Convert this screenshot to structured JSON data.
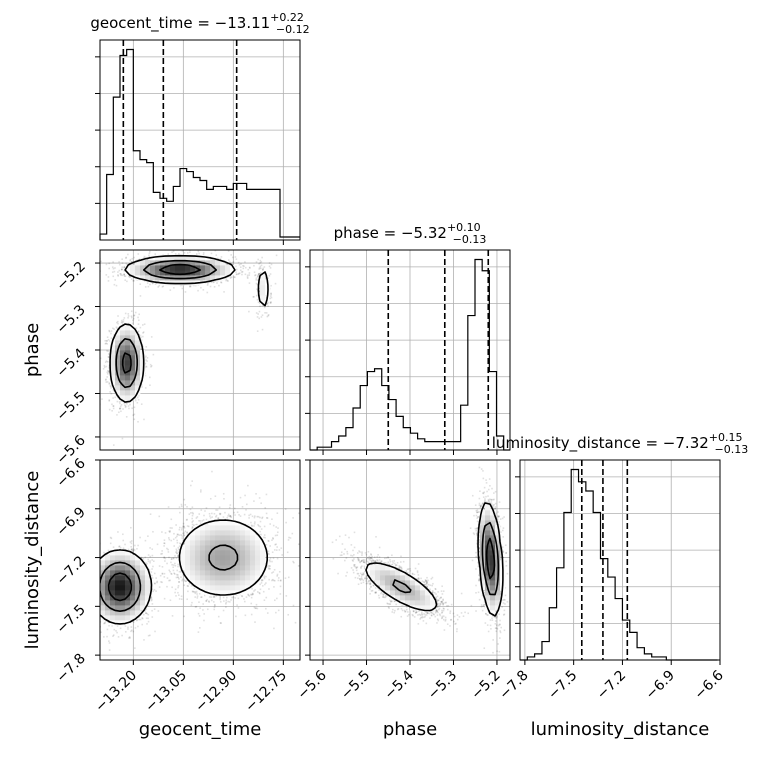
{
  "chart_data": {
    "type": "corner",
    "parameters": [
      {
        "name": "geocent_time",
        "axis_label": "geocent_time",
        "title": {
          "prefix": "geocent_time = ",
          "median": "−13.11",
          "plus": "+0.22",
          "minus": "−0.12"
        },
        "range": [
          -13.3,
          -12.7
        ],
        "ticks": [
          -13.2,
          -13.05,
          -12.9,
          -12.75
        ],
        "tick_labels": [
          "−13.20",
          "−13.05",
          "−12.90",
          "−12.75"
        ],
        "quantiles": [
          -13.23,
          -13.11,
          -12.89
        ],
        "histogram": {
          "edges": [
            -13.3,
            -13.28,
            -13.26,
            -13.24,
            -13.22,
            -13.2,
            -13.18,
            -13.16,
            -13.14,
            -13.12,
            -13.1,
            -13.08,
            -13.06,
            -13.04,
            -13.02,
            -13.0,
            -12.98,
            -12.96,
            -12.94,
            -12.92,
            -12.9,
            -12.88,
            -12.86,
            -12.84,
            -12.82,
            -12.8,
            -12.78,
            -12.76,
            -12.74,
            -12.72,
            -12.7
          ],
          "counts": [
            2,
            22,
            48,
            62,
            64,
            30,
            27,
            26,
            16,
            14,
            13,
            18,
            24,
            23,
            21,
            20,
            17,
            18,
            18,
            17,
            19,
            19,
            17,
            17,
            17,
            17,
            17,
            1,
            1,
            1
          ]
        }
      },
      {
        "name": "phase",
        "axis_label": "phase",
        "title": {
          "prefix": "phase = ",
          "median": "−5.32",
          "plus": "+0.10",
          "minus": "−0.13"
        },
        "range": [
          -5.63,
          -5.17
        ],
        "ticks": [
          -5.6,
          -5.5,
          -5.4,
          -5.3,
          -5.2
        ],
        "tick_labels": [
          "−5.6",
          "−5.5",
          "−5.4",
          "−5.3",
          "−5.2"
        ],
        "quantiles": [
          -5.45,
          -5.32,
          -5.22
        ],
        "histogram": {
          "edges": [
            -5.63,
            -5.6135,
            -5.597,
            -5.5805,
            -5.564,
            -5.5475,
            -5.531,
            -5.5145,
            -5.498,
            -5.4815,
            -5.465,
            -5.4485,
            -5.432,
            -5.4155,
            -5.399,
            -5.3825,
            -5.366,
            -5.3495,
            -5.333,
            -5.3165,
            -5.3,
            -5.2835,
            -5.267,
            -5.2505,
            -5.234,
            -5.2175,
            -5.201,
            -5.1845,
            -5.17
          ],
          "counts": [
            0,
            1,
            1,
            3,
            5,
            8,
            15,
            23,
            28,
            29,
            23,
            18,
            12,
            8,
            6,
            4,
            3,
            3,
            3,
            3,
            3,
            16,
            48,
            68,
            64,
            28,
            5,
            0
          ]
        }
      },
      {
        "name": "luminosity_distance",
        "axis_label": "luminosity_distance",
        "title": {
          "prefix": "luminosity_distance = ",
          "median": "−7.32",
          "plus": "+0.15",
          "minus": "−0.13"
        },
        "range": [
          -7.83,
          -6.6
        ],
        "ticks": [
          -7.8,
          -7.5,
          -7.2,
          -6.9,
          -6.6
        ],
        "tick_labels": [
          "−7.8",
          "−7.5",
          "−7.2",
          "−6.9",
          "−6.6"
        ],
        "quantiles": [
          -7.45,
          -7.32,
          -7.17
        ],
        "histogram": {
          "edges": [
            -7.83,
            -7.785,
            -7.74,
            -7.695,
            -7.65,
            -7.605,
            -7.56,
            -7.515,
            -7.47,
            -7.425,
            -7.38,
            -7.335,
            -7.29,
            -7.245,
            -7.2,
            -7.155,
            -7.11,
            -7.065,
            -7.02,
            -6.975,
            -6.93,
            -6.885,
            -6.84,
            -6.795,
            -6.75,
            -6.705,
            -6.66,
            -6.615
          ],
          "counts": [
            0,
            1,
            2,
            6,
            17,
            30,
            48,
            62,
            58,
            55,
            48,
            33,
            27,
            20,
            13,
            9,
            4,
            2,
            1,
            1,
            0,
            0,
            0,
            0,
            0,
            0,
            0
          ]
        }
      }
    ],
    "pairs": [
      {
        "x": "geocent_time",
        "y": "phase",
        "blobs": [
          {
            "cx": -13.22,
            "cy": -5.43,
            "sx": 0.025,
            "sy": 0.045,
            "w": 1800
          },
          {
            "cx": -13.06,
            "cy": -5.215,
            "sx": 0.08,
            "sy": 0.015,
            "w": 2200
          },
          {
            "cx": -12.81,
            "cy": -5.26,
            "sx": 0.012,
            "sy": 0.035,
            "w": 180
          }
        ]
      },
      {
        "x": "geocent_time",
        "y": "luminosity_distance",
        "blobs": [
          {
            "cx": -13.24,
            "cy": -7.38,
            "sx": 0.045,
            "sy": 0.11,
            "w": 2200
          },
          {
            "cx": -12.93,
            "cy": -7.2,
            "sx": 0.08,
            "sy": 0.14,
            "w": 2300
          }
        ]
      },
      {
        "x": "phase",
        "y": "luminosity_distance",
        "blobs": [
          {
            "cx": -5.42,
            "cy": -7.38,
            "sx": 0.05,
            "sy": 0.09,
            "w": 2000,
            "rho": -0.75
          },
          {
            "cx": -5.215,
            "cy": -7.21,
            "sx": 0.013,
            "sy": 0.17,
            "w": 2200,
            "rho": -0.3
          }
        ]
      }
    ],
    "contour_levels": [
      0.12,
      0.4,
      0.75
    ],
    "grid": true,
    "legend": "none"
  }
}
